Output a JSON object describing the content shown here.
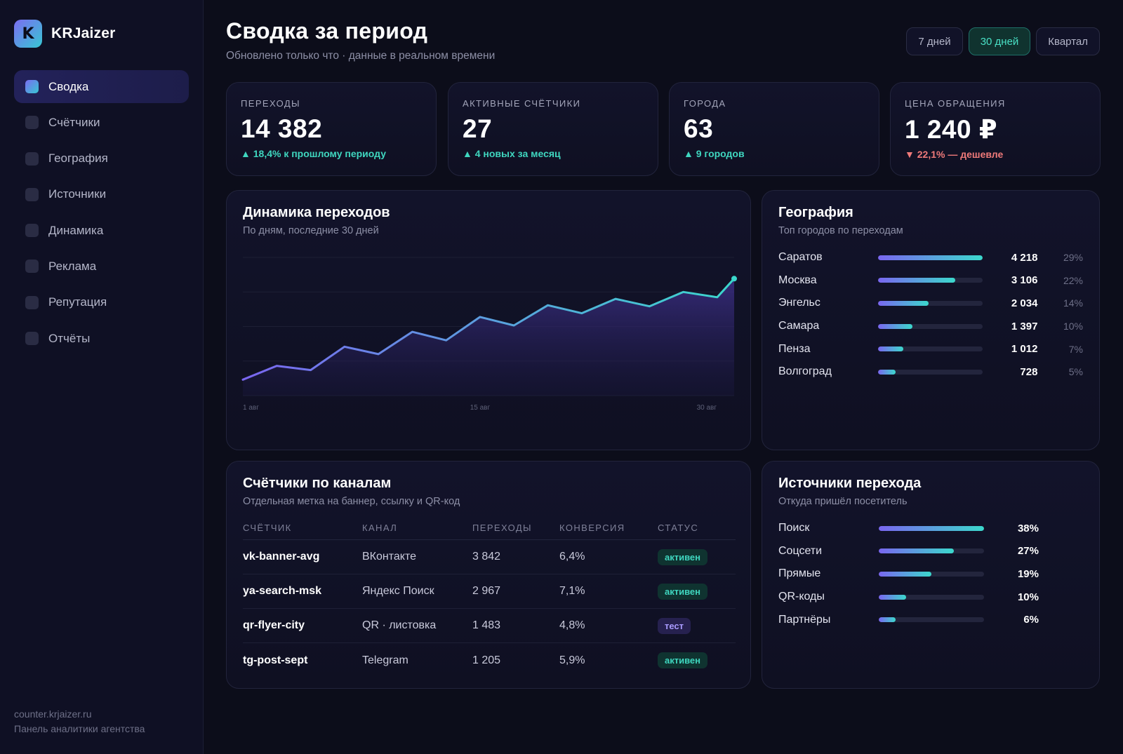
{
  "brand": {
    "logo_letter": "K",
    "name": "KRJaizer"
  },
  "sidebar": {
    "items": [
      {
        "label": "Сводка",
        "active": true
      },
      {
        "label": "Счётчики",
        "active": false
      },
      {
        "label": "География",
        "active": false
      },
      {
        "label": "Источники",
        "active": false
      },
      {
        "label": "Динамика",
        "active": false
      },
      {
        "label": "Реклама",
        "active": false
      },
      {
        "label": "Репутация",
        "active": false
      },
      {
        "label": "Отчёты",
        "active": false
      }
    ],
    "footer_domain": "counter.krjaizer.ru",
    "footer_caption": "Панель аналитики агентства"
  },
  "header": {
    "title": "Сводка за период",
    "subtitle": "Обновлено только что · данные в реальном времени",
    "periods": [
      {
        "label": "7 дней",
        "active": false
      },
      {
        "label": "30 дней",
        "active": true
      },
      {
        "label": "Квартал",
        "active": false
      }
    ]
  },
  "kpis": [
    {
      "label": "ПЕРЕХОДЫ",
      "value": "14 382",
      "delta": "▲ 18,4% к прошлому периоду",
      "trend": "up"
    },
    {
      "label": "АКТИВНЫЕ СЧЁТЧИКИ",
      "value": "27",
      "delta": "▲ 4 новых за месяц",
      "trend": "up"
    },
    {
      "label": "ГОРОДА",
      "value": "63",
      "delta": "▲ 9 городов",
      "trend": "up"
    },
    {
      "label": "ЦЕНА ОБРАЩЕНИЯ",
      "value": "1 240 ₽",
      "delta": "▼ 22,1% — дешевле",
      "trend": "down"
    }
  ],
  "chart_card": {
    "title": "Динамика переходов",
    "subtitle": "По дням, последние 30 дней"
  },
  "chart_data": {
    "type": "area",
    "x": [
      1,
      3,
      5,
      7,
      9,
      11,
      13,
      15,
      17,
      19,
      21,
      23,
      25,
      27,
      29,
      30
    ],
    "values": [
      30,
      56,
      48,
      92,
      78,
      120,
      104,
      148,
      132,
      170,
      155,
      182,
      168,
      195,
      185,
      220
    ],
    "x_tick_labels": [
      "1 авг",
      "15 авг",
      "30 авг"
    ],
    "x_tick_positions": [
      1,
      15,
      30
    ],
    "ylim": [
      0,
      260
    ],
    "grid": true,
    "color_start": "#7a66f0",
    "color_end": "#3bd8cc"
  },
  "geo": {
    "title": "География",
    "subtitle": "Топ городов по переходам",
    "rows": [
      {
        "name": "Саратов",
        "value": "4 218",
        "pct": "29%",
        "share": 1.0
      },
      {
        "name": "Москва",
        "value": "3 106",
        "pct": "22%",
        "share": 0.74
      },
      {
        "name": "Энгельс",
        "value": "2 034",
        "pct": "14%",
        "share": 0.48
      },
      {
        "name": "Самара",
        "value": "1 397",
        "pct": "10%",
        "share": 0.33
      },
      {
        "name": "Пенза",
        "value": "1 012",
        "pct": "7%",
        "share": 0.24
      },
      {
        "name": "Волгоград",
        "value": "728",
        "pct": "5%",
        "share": 0.17
      }
    ]
  },
  "counters": {
    "title": "Счётчики по каналам",
    "subtitle": "Отдельная метка на баннер, ссылку и QR-код",
    "columns": [
      "СЧЁТЧИК",
      "КАНАЛ",
      "ПЕРЕХОДЫ",
      "КОНВЕРСИЯ",
      "СТАТУС"
    ],
    "rows": [
      {
        "name": "vk-banner-avg",
        "channel": "ВКонтакте",
        "visits": "3 842",
        "conversion": "6,4%",
        "status": "активен",
        "status_type": "active"
      },
      {
        "name": "ya-search-msk",
        "channel": "Яндекс Поиск",
        "visits": "2 967",
        "conversion": "7,1%",
        "status": "активен",
        "status_type": "active"
      },
      {
        "name": "qr-flyer-city",
        "channel": "QR · листовка",
        "visits": "1 483",
        "conversion": "4,8%",
        "status": "тест",
        "status_type": "test"
      },
      {
        "name": "tg-post-sept",
        "channel": "Telegram",
        "visits": "1 205",
        "conversion": "5,9%",
        "status": "активен",
        "status_type": "active"
      }
    ]
  },
  "sources": {
    "title": "Источники перехода",
    "subtitle": "Откуда пришёл посетитель",
    "rows": [
      {
        "name": "Поиск",
        "pct": "38%",
        "share": 1.0
      },
      {
        "name": "Соцсети",
        "pct": "27%",
        "share": 0.71
      },
      {
        "name": "Прямые",
        "pct": "19%",
        "share": 0.5
      },
      {
        "name": "QR-коды",
        "pct": "10%",
        "share": 0.26
      },
      {
        "name": "Партнёры",
        "pct": "6%",
        "share": 0.16
      }
    ]
  }
}
